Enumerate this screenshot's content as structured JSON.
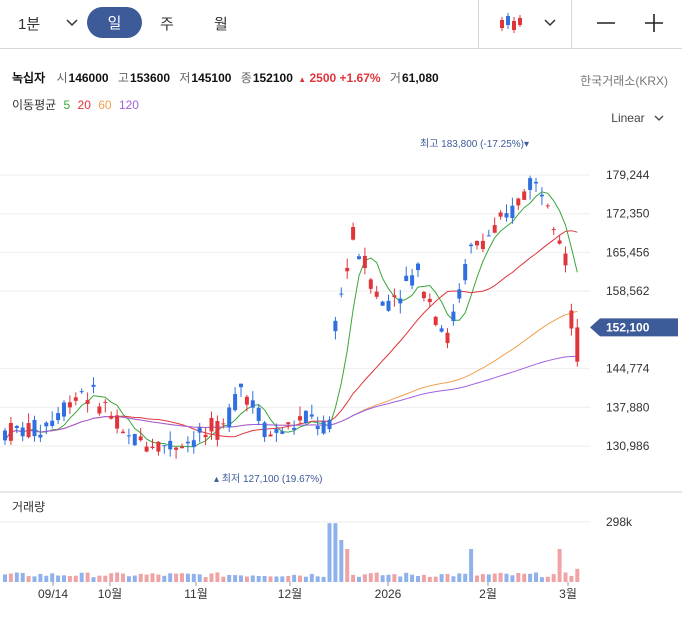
{
  "toolbar": {
    "interval": "1분",
    "periods": [
      "일",
      "주",
      "월"
    ],
    "active_period": "일",
    "minus": "—",
    "plus": "+"
  },
  "stock": {
    "name": "녹십자",
    "open_label": "시",
    "open": "146000",
    "high_label": "고",
    "high": "153600",
    "low_label": "저",
    "low": "145100",
    "close_label": "종",
    "close": "152100",
    "change": "2500",
    "change_pct": "+1.67%",
    "volume_label": "거",
    "volume": "61,080",
    "exchange": "한국거래소(KRX)"
  },
  "moving_averages": {
    "label": "이동평균",
    "items": [
      {
        "period": "5",
        "color": "#3aa63a"
      },
      {
        "period": "20",
        "color": "#e0353b"
      },
      {
        "period": "60",
        "color": "#f0a050"
      },
      {
        "period": "120",
        "color": "#a060e0"
      }
    ]
  },
  "scale_mode": "Linear",
  "volume_panel": {
    "title": "거래량",
    "axis_label": "298k"
  },
  "colors": {
    "up": "#e0353b",
    "down": "#2f6fe0",
    "accent": "#3d5a99"
  },
  "chart_data": {
    "type": "candlestick",
    "y_ticks": [
      "179,244",
      "172,350",
      "165,456",
      "158,562",
      "144,774",
      "137,880",
      "130,986"
    ],
    "y_tick_values": [
      179244,
      172350,
      165456,
      158562,
      144774,
      137880,
      130986
    ],
    "x_ticks": [
      "09/14",
      "10월",
      "11월",
      "12월",
      "2026",
      "2월",
      "3월"
    ],
    "last_price_label": "152,100",
    "max_annotation": "최고 183,800 (-17.25%)",
    "min_annotation": "최저 127,100 (19.67%)",
    "ylim": [
      126000,
      186000
    ],
    "volume_max": "298k",
    "grid": true
  }
}
